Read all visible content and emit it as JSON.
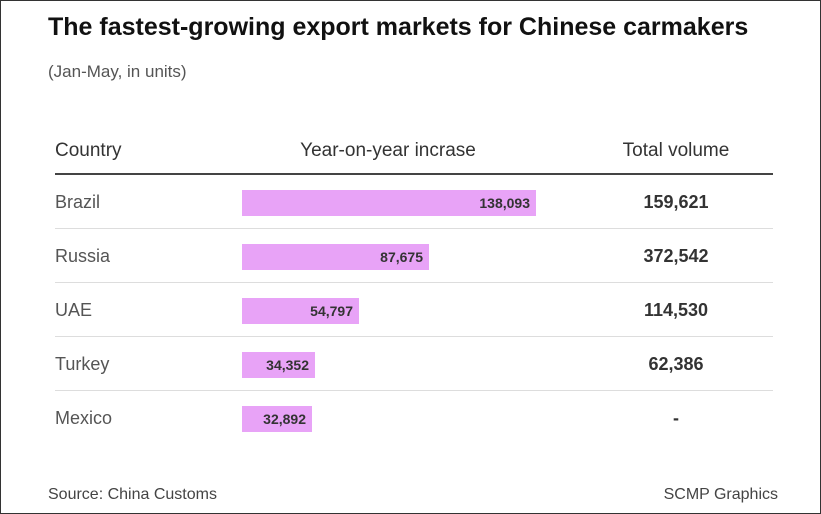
{
  "title": "The fastest-growing export markets for Chinese carmakers",
  "subtitle": "(Jan-May, in units)",
  "table_headers": {
    "country": "Country",
    "yoy": "Year-on-year incrase",
    "total": "Total volume"
  },
  "source": "Source: China Customs",
  "credit": "SCMP Graphics",
  "colors": {
    "bar": "#e8a3f7"
  },
  "chart_data": {
    "type": "bar",
    "orientation": "horizontal",
    "title": "The fastest-growing export markets for Chinese carmakers",
    "subtitle": "(Jan-May, in units)",
    "categories": [
      "Brazil",
      "Russia",
      "UAE",
      "Turkey",
      "Mexico"
    ],
    "series": [
      {
        "name": "Year-on-year incrase",
        "values": [
          138093,
          87675,
          54797,
          34352,
          32892
        ],
        "labels": [
          "138,093",
          "87,675",
          "54,797",
          "34,352",
          "32,892"
        ]
      }
    ],
    "total_volume": [
      "159,621",
      "372,542",
      "114,530",
      "62,386",
      "-"
    ],
    "grid": false,
    "legend": "none"
  }
}
